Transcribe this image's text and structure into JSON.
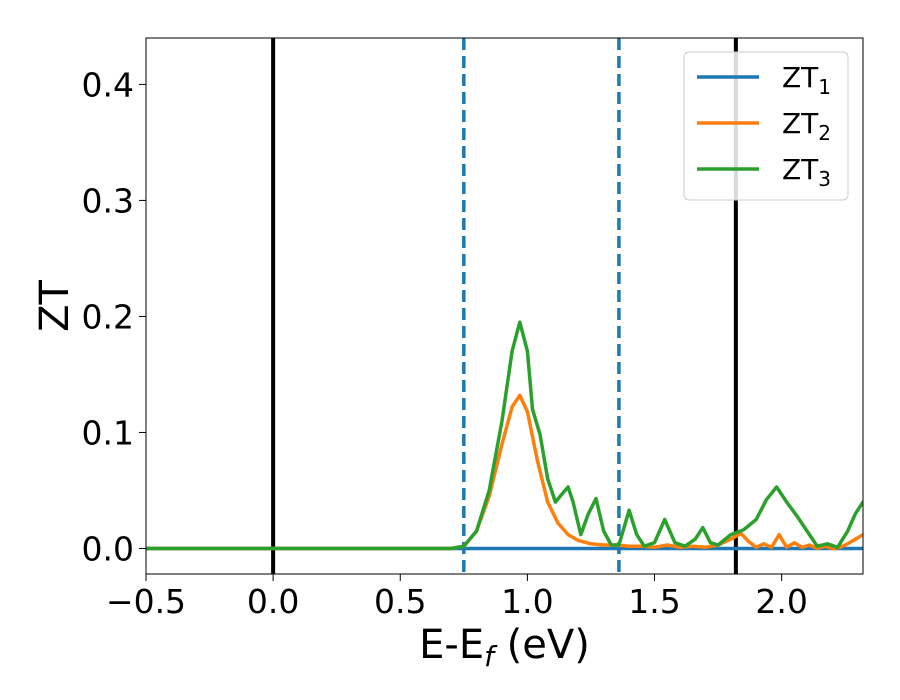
{
  "chart_data": {
    "type": "line",
    "xlabel": "E-E",
    "xlabel_sub": "f",
    "xlabel_unit": " (eV)",
    "ylabel": "ZT",
    "xlim": [
      -0.5,
      2.32
    ],
    "ylim": [
      -0.022,
      0.44
    ],
    "x_ticks": [
      -0.5,
      0.0,
      0.5,
      1.0,
      1.5,
      2.0
    ],
    "x_tick_labels": [
      "−0.5",
      "0.0",
      "0.5",
      "1.0",
      "1.5",
      "2.0"
    ],
    "y_ticks": [
      0.0,
      0.1,
      0.2,
      0.3,
      0.4
    ],
    "y_tick_labels": [
      "0.0",
      "0.1",
      "0.2",
      "0.3",
      "0.4"
    ],
    "grid": false,
    "legend_position": "top-right",
    "vertical_lines": [
      {
        "x": 0.0,
        "style": "solid",
        "color": "#000000"
      },
      {
        "x": 1.82,
        "style": "solid",
        "color": "#000000"
      },
      {
        "x": 0.75,
        "style": "dashed",
        "color": "#1f77b4"
      },
      {
        "x": 1.36,
        "style": "dashed",
        "color": "#1f77b4"
      }
    ],
    "series": [
      {
        "name": "ZT",
        "sub": "1",
        "color": "#1f77b4",
        "x": [
          -0.5,
          2.32
        ],
        "y": [
          0.0,
          0.0
        ]
      },
      {
        "name": "ZT",
        "sub": "2",
        "color": "#ff7f0e",
        "x": [
          -0.5,
          0.7,
          0.75,
          0.8,
          0.85,
          0.9,
          0.94,
          0.97,
          1.0,
          1.04,
          1.08,
          1.12,
          1.16,
          1.2,
          1.25,
          1.3,
          1.35,
          1.4,
          1.45,
          1.5,
          1.55,
          1.6,
          1.65,
          1.7,
          1.75,
          1.8,
          1.84,
          1.87,
          1.9,
          1.93,
          1.96,
          1.99,
          2.02,
          2.05,
          2.08,
          2.11,
          2.14,
          2.17,
          2.2,
          2.23,
          2.26,
          2.29,
          2.32
        ],
        "y": [
          0.0,
          0.0,
          0.002,
          0.015,
          0.045,
          0.09,
          0.122,
          0.132,
          0.118,
          0.075,
          0.04,
          0.022,
          0.012,
          0.007,
          0.004,
          0.003,
          0.003,
          0.002,
          0.002,
          0.001,
          0.003,
          0.001,
          0.002,
          0.001,
          0.003,
          0.008,
          0.013,
          0.006,
          0.001,
          0.004,
          0.001,
          0.012,
          0.001,
          0.005,
          0.001,
          0.003,
          0.0,
          0.002,
          0.0,
          0.001,
          0.004,
          0.008,
          0.012
        ]
      },
      {
        "name": "ZT",
        "sub": "3",
        "color": "#2ca02c",
        "x": [
          -0.5,
          0.7,
          0.75,
          0.8,
          0.85,
          0.9,
          0.94,
          0.97,
          1.0,
          1.02,
          1.05,
          1.08,
          1.11,
          1.14,
          1.16,
          1.18,
          1.21,
          1.24,
          1.27,
          1.3,
          1.33,
          1.36,
          1.4,
          1.43,
          1.46,
          1.5,
          1.54,
          1.58,
          1.62,
          1.66,
          1.69,
          1.72,
          1.75,
          1.8,
          1.85,
          1.9,
          1.94,
          1.98,
          2.02,
          2.06,
          2.1,
          2.14,
          2.18,
          2.22,
          2.26,
          2.29,
          2.32
        ],
        "y": [
          0.0,
          0.0,
          0.002,
          0.015,
          0.05,
          0.11,
          0.17,
          0.195,
          0.17,
          0.12,
          0.098,
          0.06,
          0.04,
          0.048,
          0.053,
          0.04,
          0.012,
          0.03,
          0.043,
          0.015,
          0.003,
          0.003,
          0.033,
          0.012,
          0.002,
          0.005,
          0.025,
          0.005,
          0.002,
          0.008,
          0.018,
          0.005,
          0.003,
          0.012,
          0.016,
          0.025,
          0.042,
          0.053,
          0.04,
          0.028,
          0.015,
          0.002,
          0.004,
          0.001,
          0.015,
          0.03,
          0.04
        ]
      }
    ]
  }
}
